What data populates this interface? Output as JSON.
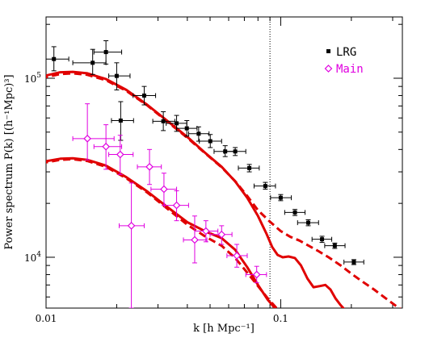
{
  "chart_data": {
    "type": "scatter",
    "xlabel": "k [h Mpc⁻¹]",
    "ylabel": "Power spectrum P(k) [(h⁻¹Mpc)³]",
    "xscale": "log",
    "yscale": "log",
    "xlim": [
      0.01,
      0.33
    ],
    "ylim": [
      5200,
      220000
    ],
    "x_tick_labels": [
      {
        "value": 0.01,
        "label": "0.01"
      },
      {
        "value": 0.1,
        "label": "0.1"
      }
    ],
    "y_tick_labels": [
      {
        "value": 10000,
        "base": "10",
        "exp": "4"
      },
      {
        "value": 100000,
        "base": "10",
        "exp": "5"
      }
    ],
    "vertical_line_x": 0.09,
    "legend": {
      "placement": "top-right",
      "entries": [
        {
          "label": "LRG",
          "marker": "square",
          "color": "#000000"
        },
        {
          "label": "Main",
          "marker": "diamond",
          "color": "#e000e0"
        }
      ]
    },
    "series": [
      {
        "name": "LRG",
        "color": "#000000",
        "marker": "square",
        "points": [
          {
            "x": 0.0108,
            "xlo": 0.0098,
            "xhi": 0.0125,
            "y": 128000,
            "ylo": 110000,
            "yhi": 150000
          },
          {
            "x": 0.0158,
            "xlo": 0.013,
            "xhi": 0.018,
            "y": 122000,
            "ylo": 105000,
            "yhi": 145000
          },
          {
            "x": 0.018,
            "xlo": 0.016,
            "xhi": 0.021,
            "y": 140000,
            "ylo": 120000,
            "yhi": 162000
          },
          {
            "x": 0.02,
            "xlo": 0.0185,
            "xhi": 0.0228,
            "y": 103000,
            "ylo": 86000,
            "yhi": 122000
          },
          {
            "x": 0.0208,
            "xlo": 0.019,
            "xhi": 0.0236,
            "y": 58000,
            "ylo": 45000,
            "yhi": 74000
          },
          {
            "x": 0.0262,
            "xlo": 0.0235,
            "xhi": 0.0293,
            "y": 80000,
            "ylo": 71000,
            "yhi": 90000
          },
          {
            "x": 0.0316,
            "xlo": 0.0285,
            "xhi": 0.0354,
            "y": 57500,
            "ylo": 51000,
            "yhi": 65000
          },
          {
            "x": 0.036,
            "xlo": 0.0325,
            "xhi": 0.0398,
            "y": 56000,
            "ylo": 50500,
            "yhi": 62000
          },
          {
            "x": 0.0398,
            "xlo": 0.036,
            "xhi": 0.044,
            "y": 52500,
            "ylo": 47500,
            "yhi": 58000
          },
          {
            "x": 0.0447,
            "xlo": 0.0405,
            "xhi": 0.0495,
            "y": 49000,
            "ylo": 44500,
            "yhi": 53500
          },
          {
            "x": 0.0501,
            "xlo": 0.045,
            "xhi": 0.056,
            "y": 44500,
            "ylo": 41000,
            "yhi": 48500
          },
          {
            "x": 0.058,
            "xlo": 0.052,
            "xhi": 0.064,
            "y": 39000,
            "ylo": 36500,
            "yhi": 42000
          },
          {
            "x": 0.064,
            "xlo": 0.0575,
            "xhi": 0.071,
            "y": 39000,
            "ylo": 37000,
            "yhi": 41000
          },
          {
            "x": 0.0735,
            "xlo": 0.066,
            "xhi": 0.081,
            "y": 31500,
            "ylo": 30000,
            "yhi": 33000
          },
          {
            "x": 0.086,
            "xlo": 0.077,
            "xhi": 0.095,
            "y": 25000,
            "ylo": 24000,
            "yhi": 26200
          },
          {
            "x": 0.1,
            "xlo": 0.0905,
            "xhi": 0.111,
            "y": 21500,
            "ylo": 20700,
            "yhi": 22400
          },
          {
            "x": 0.115,
            "xlo": 0.104,
            "xhi": 0.127,
            "y": 17800,
            "ylo": 17100,
            "yhi": 18500
          },
          {
            "x": 0.131,
            "xlo": 0.118,
            "xhi": 0.145,
            "y": 15600,
            "ylo": 15000,
            "yhi": 16200
          },
          {
            "x": 0.15,
            "xlo": 0.136,
            "xhi": 0.165,
            "y": 12600,
            "ylo": 12100,
            "yhi": 13100
          },
          {
            "x": 0.17,
            "xlo": 0.154,
            "xhi": 0.188,
            "y": 11600,
            "ylo": 11200,
            "yhi": 12000
          },
          {
            "x": 0.205,
            "xlo": 0.186,
            "xhi": 0.226,
            "y": 9400,
            "ylo": 9100,
            "yhi": 9700
          }
        ]
      },
      {
        "name": "Main",
        "color": "#e000e0",
        "marker": "diamond",
        "points": [
          {
            "x": 0.015,
            "xlo": 0.013,
            "xhi": 0.0195,
            "y": 46000,
            "ylo": 35000,
            "yhi": 72000
          },
          {
            "x": 0.018,
            "xlo": 0.016,
            "xhi": 0.021,
            "y": 41500,
            "ylo": 31000,
            "yhi": 55000
          },
          {
            "x": 0.0207,
            "xlo": 0.0185,
            "xhi": 0.0235,
            "y": 37500,
            "ylo": 29000,
            "yhi": 48000
          },
          {
            "x": 0.0231,
            "xlo": 0.0205,
            "xhi": 0.0262,
            "y": 15000,
            "ylo": 5200,
            "yhi": 26000
          },
          {
            "x": 0.0276,
            "xlo": 0.0245,
            "xhi": 0.031,
            "y": 32000,
            "ylo": 25500,
            "yhi": 40000
          },
          {
            "x": 0.0318,
            "xlo": 0.028,
            "xhi": 0.036,
            "y": 24000,
            "ylo": 19500,
            "yhi": 29500
          },
          {
            "x": 0.036,
            "xlo": 0.032,
            "xhi": 0.0405,
            "y": 19500,
            "ylo": 16000,
            "yhi": 23500
          },
          {
            "x": 0.043,
            "xlo": 0.0385,
            "xhi": 0.0485,
            "y": 12500,
            "ylo": 9300,
            "yhi": 17000
          },
          {
            "x": 0.048,
            "xlo": 0.043,
            "xhi": 0.054,
            "y": 14000,
            "ylo": 12200,
            "yhi": 16000
          },
          {
            "x": 0.056,
            "xlo": 0.05,
            "xhi": 0.062,
            "y": 13400,
            "ylo": 11800,
            "yhi": 15000
          },
          {
            "x": 0.065,
            "xlo": 0.059,
            "xhi": 0.072,
            "y": 10200,
            "ylo": 8800,
            "yhi": 11800
          },
          {
            "x": 0.079,
            "xlo": 0.071,
            "xhi": 0.087,
            "y": 8000,
            "ylo": 7200,
            "yhi": 8900
          }
        ]
      }
    ],
    "model_curves": [
      {
        "target": "LRG",
        "style": "solid",
        "color": "#e00000",
        "x": [
          0.0095,
          0.0115,
          0.013,
          0.015,
          0.018,
          0.022,
          0.027,
          0.033,
          0.04,
          0.048,
          0.056,
          0.064,
          0.072,
          0.08,
          0.087,
          0.092,
          0.097,
          0.102,
          0.108,
          0.115,
          0.122,
          0.13,
          0.138,
          0.147,
          0.155,
          0.163,
          0.171,
          0.18,
          0.19
        ],
        "y": [
          102000,
          108000,
          108500,
          106500,
          99000,
          86000,
          71000,
          57500,
          47000,
          38000,
          32000,
          26500,
          21500,
          17000,
          13500,
          11400,
          10300,
          10000,
          10100,
          9900,
          9000,
          7600,
          6800,
          6900,
          7000,
          6600,
          5900,
          5400,
          5000
        ]
      },
      {
        "target": "LRG",
        "style": "dashed",
        "color": "#e00000",
        "x": [
          0.0095,
          0.0115,
          0.013,
          0.015,
          0.018,
          0.022,
          0.027,
          0.033,
          0.04,
          0.048,
          0.056,
          0.064,
          0.072,
          0.08,
          0.09,
          0.1,
          0.11,
          0.12,
          0.13,
          0.145,
          0.16,
          0.18,
          0.2,
          0.22,
          0.25,
          0.28,
          0.31,
          0.33
        ],
        "y": [
          100000,
          105500,
          106500,
          104500,
          97500,
          85000,
          70500,
          57000,
          46500,
          37800,
          31800,
          26600,
          22000,
          18300,
          15800,
          14000,
          13000,
          12400,
          11700,
          10800,
          10000,
          9000,
          8100,
          7400,
          6600,
          5900,
          5350,
          5050
        ]
      },
      {
        "target": "Main",
        "style": "solid",
        "color": "#e00000",
        "x": [
          0.0095,
          0.0115,
          0.013,
          0.015,
          0.018,
          0.022,
          0.027,
          0.033,
          0.04,
          0.048,
          0.056,
          0.064,
          0.072,
          0.08,
          0.088,
          0.095
        ],
        "y": [
          34000,
          35500,
          35700,
          35000,
          32500,
          28000,
          23300,
          19000,
          15700,
          13900,
          12800,
          11000,
          8800,
          7000,
          5800,
          5150
        ]
      },
      {
        "target": "Main",
        "style": "dashed",
        "color": "#e00000",
        "x": [
          0.0095,
          0.0115,
          0.013,
          0.015,
          0.018,
          0.022,
          0.027,
          0.033,
          0.04,
          0.048,
          0.056,
          0.064,
          0.072,
          0.08,
          0.088,
          0.096
        ],
        "y": [
          33500,
          35000,
          35300,
          34500,
          32000,
          27600,
          23000,
          18600,
          15200,
          13000,
          11600,
          9900,
          8200,
          6900,
          5900,
          5200
        ]
      }
    ]
  }
}
